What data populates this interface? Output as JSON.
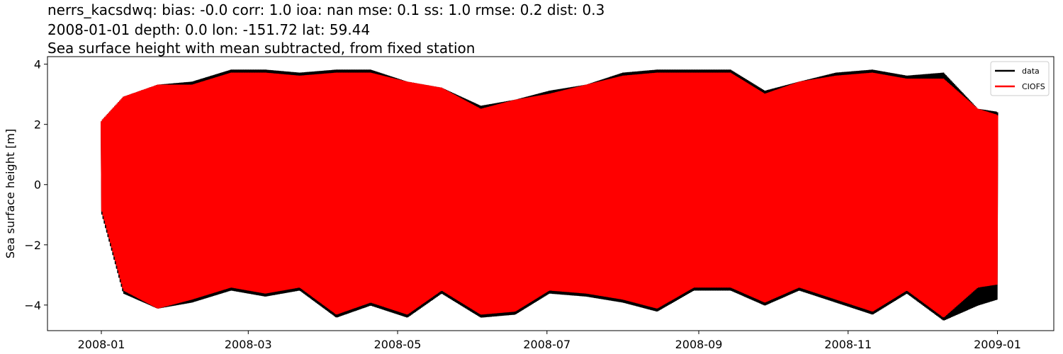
{
  "chart_data": {
    "type": "line",
    "title_lines": [
      "nerrs_kacsdwq: bias: -0.0  corr: 1.0  ioa: nan  mse: 0.1  ss: 1.0  rmse: 0.2  dist: 0.3",
      "2008-01-01 depth: 0.0 lon: -151.72 lat: 59.44",
      "Sea surface height with mean subtracted, from fixed station"
    ],
    "xlabel": "",
    "ylabel": "Sea surface height [m]",
    "x_range": [
      "2008-01-01",
      "2009-01-01"
    ],
    "xlim": [
      "2007-12-10",
      "2009-01-24"
    ],
    "ylim": [
      -4.85,
      4.25
    ],
    "xticks": [
      "2008-01-01",
      "2008-03-01",
      "2008-05-01",
      "2008-07-01",
      "2008-09-01",
      "2008-11-01",
      "2009-01-01"
    ],
    "xtick_labels": [
      "2008-01",
      "2008-03",
      "2008-05",
      "2008-07",
      "2008-09",
      "2008-11",
      "2009-01"
    ],
    "yticks": [
      -4,
      -2,
      0,
      2,
      4
    ],
    "ytick_labels": [
      "−4",
      "−2",
      "0",
      "2",
      "4"
    ],
    "legend_position": "top-right",
    "series": [
      {
        "name": "data",
        "color": "#000000",
        "envelope_dates": [
          "2008-01-01",
          "2008-01-10",
          "2008-01-24",
          "2008-02-07",
          "2008-02-23",
          "2008-03-08",
          "2008-03-22",
          "2008-04-06",
          "2008-04-20",
          "2008-05-05",
          "2008-05-19",
          "2008-06-04",
          "2008-06-18",
          "2008-07-02",
          "2008-07-17",
          "2008-08-01",
          "2008-08-15",
          "2008-08-30",
          "2008-09-14",
          "2008-09-28",
          "2008-10-12",
          "2008-10-27",
          "2008-11-11",
          "2008-11-25",
          "2008-12-10",
          "2008-12-24",
          "2009-01-01"
        ],
        "envelope_max": [
          2.1,
          2.9,
          3.3,
          3.4,
          3.8,
          3.8,
          3.7,
          3.8,
          3.8,
          3.4,
          3.2,
          2.6,
          2.8,
          3.1,
          3.3,
          3.7,
          3.8,
          3.8,
          3.8,
          3.1,
          3.4,
          3.7,
          3.8,
          3.6,
          3.7,
          2.5,
          2.4
        ],
        "envelope_min": [
          -0.9,
          -3.6,
          -4.1,
          -3.9,
          -3.5,
          -3.7,
          -3.5,
          -4.4,
          -4.0,
          -4.4,
          -3.6,
          -4.4,
          -4.3,
          -3.6,
          -3.7,
          -3.9,
          -4.2,
          -3.5,
          -3.5,
          -4.0,
          -3.5,
          -3.9,
          -4.3,
          -3.6,
          -4.5,
          -4.0,
          -3.8
        ]
      },
      {
        "name": "CIOFS",
        "color": "#ff0000",
        "envelope_dates": [
          "2008-01-01",
          "2008-01-10",
          "2008-01-24",
          "2008-02-07",
          "2008-02-23",
          "2008-03-08",
          "2008-03-22",
          "2008-04-06",
          "2008-04-20",
          "2008-05-05",
          "2008-05-19",
          "2008-06-04",
          "2008-06-18",
          "2008-07-02",
          "2008-07-17",
          "2008-08-01",
          "2008-08-15",
          "2008-08-30",
          "2008-09-14",
          "2008-09-28",
          "2008-10-12",
          "2008-10-27",
          "2008-11-11",
          "2008-11-25",
          "2008-12-10",
          "2008-12-24",
          "2009-01-01"
        ],
        "envelope_max": [
          2.1,
          2.9,
          3.3,
          3.3,
          3.7,
          3.7,
          3.6,
          3.7,
          3.7,
          3.4,
          3.2,
          2.5,
          2.8,
          3.0,
          3.3,
          3.6,
          3.7,
          3.7,
          3.7,
          3.0,
          3.4,
          3.6,
          3.7,
          3.5,
          3.5,
          2.5,
          2.3
        ],
        "envelope_min": [
          -0.8,
          -3.5,
          -4.1,
          -3.8,
          -3.4,
          -3.6,
          -3.4,
          -4.3,
          -3.9,
          -4.3,
          -3.5,
          -4.3,
          -4.2,
          -3.5,
          -3.6,
          -3.8,
          -4.1,
          -3.4,
          -3.4,
          -3.9,
          -3.4,
          -3.8,
          -4.2,
          -3.5,
          -4.4,
          -3.4,
          -3.3
        ]
      }
    ]
  }
}
